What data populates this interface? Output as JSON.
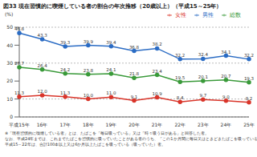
{
  "chart_data": {
    "type": "line",
    "title": "図33 現在習慣的に喫煙している者の割合の年次推移（20歳以上）（平成15～25年）",
    "y_label": "(%)",
    "categories": [
      "平成15年",
      "16年",
      "17年",
      "18年",
      "19年",
      "20年",
      "21年",
      "22年",
      "23年",
      "24年",
      "25年"
    ],
    "series": [
      {
        "name": "総数",
        "color": "#3a9a3a",
        "marker": "circle",
        "values": [
          27.7,
          26.4,
          24.2,
          23.8,
          24.1,
          21.8,
          23.4,
          19.5,
          20.1,
          20.7,
          19.3
        ]
      },
      {
        "name": "男性",
        "color": "#2b6cc4",
        "marker": "circle",
        "values": [
          46.8,
          43.3,
          39.3,
          39.9,
          39.4,
          36.8,
          38.2,
          32.2,
          32.4,
          34.1,
          32.2
        ]
      },
      {
        "name": "女性",
        "color": "#d9352a",
        "marker": "circle",
        "values": [
          11.3,
          12.0,
          11.3,
          10.0,
          11.0,
          9.1,
          10.9,
          8.4,
          9.7,
          9.0,
          8.2
        ]
      }
    ],
    "ylim": [
      0,
      50
    ],
    "yticks": [
      0,
      10,
      20,
      30,
      40,
      50
    ],
    "grid": true,
    "legend": "top-right",
    "data_labels": true,
    "annotations": [
      "※「現在習慣的に喫煙している者」とは、たばこを「毎日吸っている」又は「時々吸う日がある」と回答した者。",
      "なお、平成24年までは、これまでたばこを習慣的に吸っていたことがある者のうち、「この1か月間に毎日又はときどきたばこを吸っている」と回答した者。",
      "平成15～22年は、合計100本以上又は6か月以上たばこを吸っている（吸っていた）者。"
    ]
  }
}
